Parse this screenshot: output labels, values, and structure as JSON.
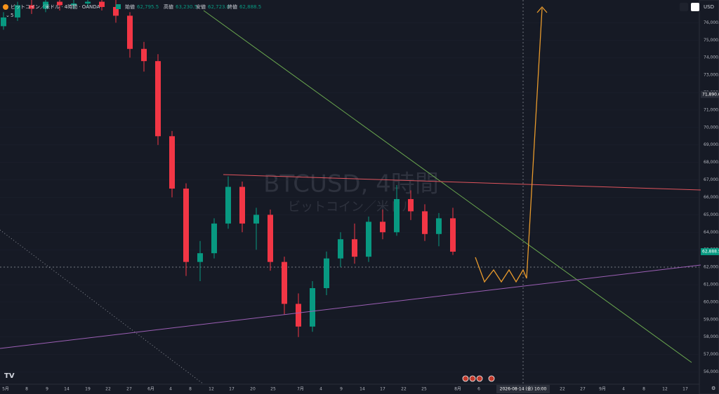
{
  "header": {
    "symbol": "ビットコイン／米ドル · 4時間 · OANDA",
    "open_label": "始値",
    "open": "62,795.5",
    "high_label": "高値",
    "high": "63,230.5",
    "low_label": "安値",
    "low": "62,723.0",
    "close_label": "終値",
    "close": "62,888.5",
    "indicators": "5",
    "currency": "USD"
  },
  "chart_data": {
    "type": "candlestick",
    "title": "BTCUSD, 4時間",
    "subtitle": "ビットコイン／米ドル",
    "up_color": "#089981",
    "down_color": "#f23645",
    "ylim": [
      55300,
      77300
    ],
    "yticks": [
      {
        "value": 56000,
        "label": "56,000.0"
      },
      {
        "value": 57000,
        "label": "57,000.0"
      },
      {
        "value": 58000,
        "label": "58,000.0"
      },
      {
        "value": 59000,
        "label": "59,000.0"
      },
      {
        "value": 60000,
        "label": "60,000.0"
      },
      {
        "value": 61000,
        "label": "61,000.0"
      },
      {
        "value": 62000,
        "label": "62,000.0"
      },
      {
        "value": 63000,
        "label": "63,000.0"
      },
      {
        "value": 64000,
        "label": "64,000.0"
      },
      {
        "value": 65000,
        "label": "65,000.0"
      },
      {
        "value": 66000,
        "label": "66,000.0"
      },
      {
        "value": 67000,
        "label": "67,000.0"
      },
      {
        "value": 68000,
        "label": "68,000.0"
      },
      {
        "value": 69000,
        "label": "69,000.0"
      },
      {
        "value": 70000,
        "label": "70,000.0"
      },
      {
        "value": 71000,
        "label": "71,000.0"
      },
      {
        "value": 72000,
        "label": "72,000.0"
      },
      {
        "value": 73000,
        "label": "73,000.0"
      },
      {
        "value": 74000,
        "label": "74,000.0"
      },
      {
        "value": 75000,
        "label": "75,000.0"
      },
      {
        "value": 76000,
        "label": "76,000.0"
      }
    ],
    "price_labels": [
      {
        "value": 71890,
        "label": "71,890.0"
      },
      {
        "value": 62888.5,
        "label": "62,888.5"
      }
    ],
    "x_labels": [
      "5月",
      "8",
      "9",
      "14",
      "19",
      "22",
      "27",
      "6月",
      "4",
      "8",
      "12",
      "17",
      "20",
      "25",
      "7月",
      "4",
      "9",
      "14",
      "17",
      "22",
      "25",
      "8月",
      "6",
      "22",
      "27",
      "9月",
      "4",
      "8",
      "12",
      "17"
    ],
    "crosshair_time": "2026-08-14 (金) 10:00",
    "ohlc": [
      [
        75800,
        76600,
        75600,
        76300
      ],
      [
        76300,
        77200,
        76100,
        77000
      ],
      [
        77000,
        77300,
        76500,
        76800
      ],
      [
        76800,
        77300,
        76600,
        77200
      ],
      [
        77200,
        77300,
        76700,
        77000
      ],
      [
        77000,
        77300,
        76800,
        77100
      ],
      [
        77100,
        77300,
        76900,
        77200
      ],
      [
        77200,
        77300,
        76700,
        76900
      ],
      [
        76900,
        77300,
        76000,
        76400
      ],
      [
        76400,
        76600,
        74000,
        74500
      ],
      [
        74500,
        74900,
        73200,
        73800
      ],
      [
        73800,
        74200,
        69000,
        69500
      ],
      [
        69500,
        69800,
        66000,
        66500
      ],
      [
        66500,
        66800,
        61500,
        62300
      ],
      [
        62300,
        63500,
        61200,
        62800
      ],
      [
        62800,
        64800,
        62500,
        64500
      ],
      [
        64500,
        67200,
        64200,
        66600
      ],
      [
        66600,
        66900,
        64000,
        64500
      ],
      [
        64500,
        65400,
        63000,
        65000
      ],
      [
        65000,
        65300,
        61800,
        62300
      ],
      [
        62300,
        62600,
        59300,
        59900
      ],
      [
        59900,
        60500,
        58000,
        58600
      ],
      [
        58600,
        61200,
        58300,
        60800
      ],
      [
        60800,
        62900,
        60400,
        62500
      ],
      [
        62500,
        64000,
        62000,
        63600
      ],
      [
        63600,
        64500,
        62200,
        62600
      ],
      [
        62600,
        64900,
        62300,
        64600
      ],
      [
        64600,
        65300,
        63600,
        64000
      ],
      [
        64000,
        66700,
        63800,
        65900
      ],
      [
        65900,
        66400,
        64700,
        65200
      ],
      [
        65200,
        65600,
        63500,
        63900
      ],
      [
        63900,
        65100,
        63200,
        64800
      ],
      [
        64800,
        65400,
        62700,
        62888.5
      ]
    ]
  }
}
